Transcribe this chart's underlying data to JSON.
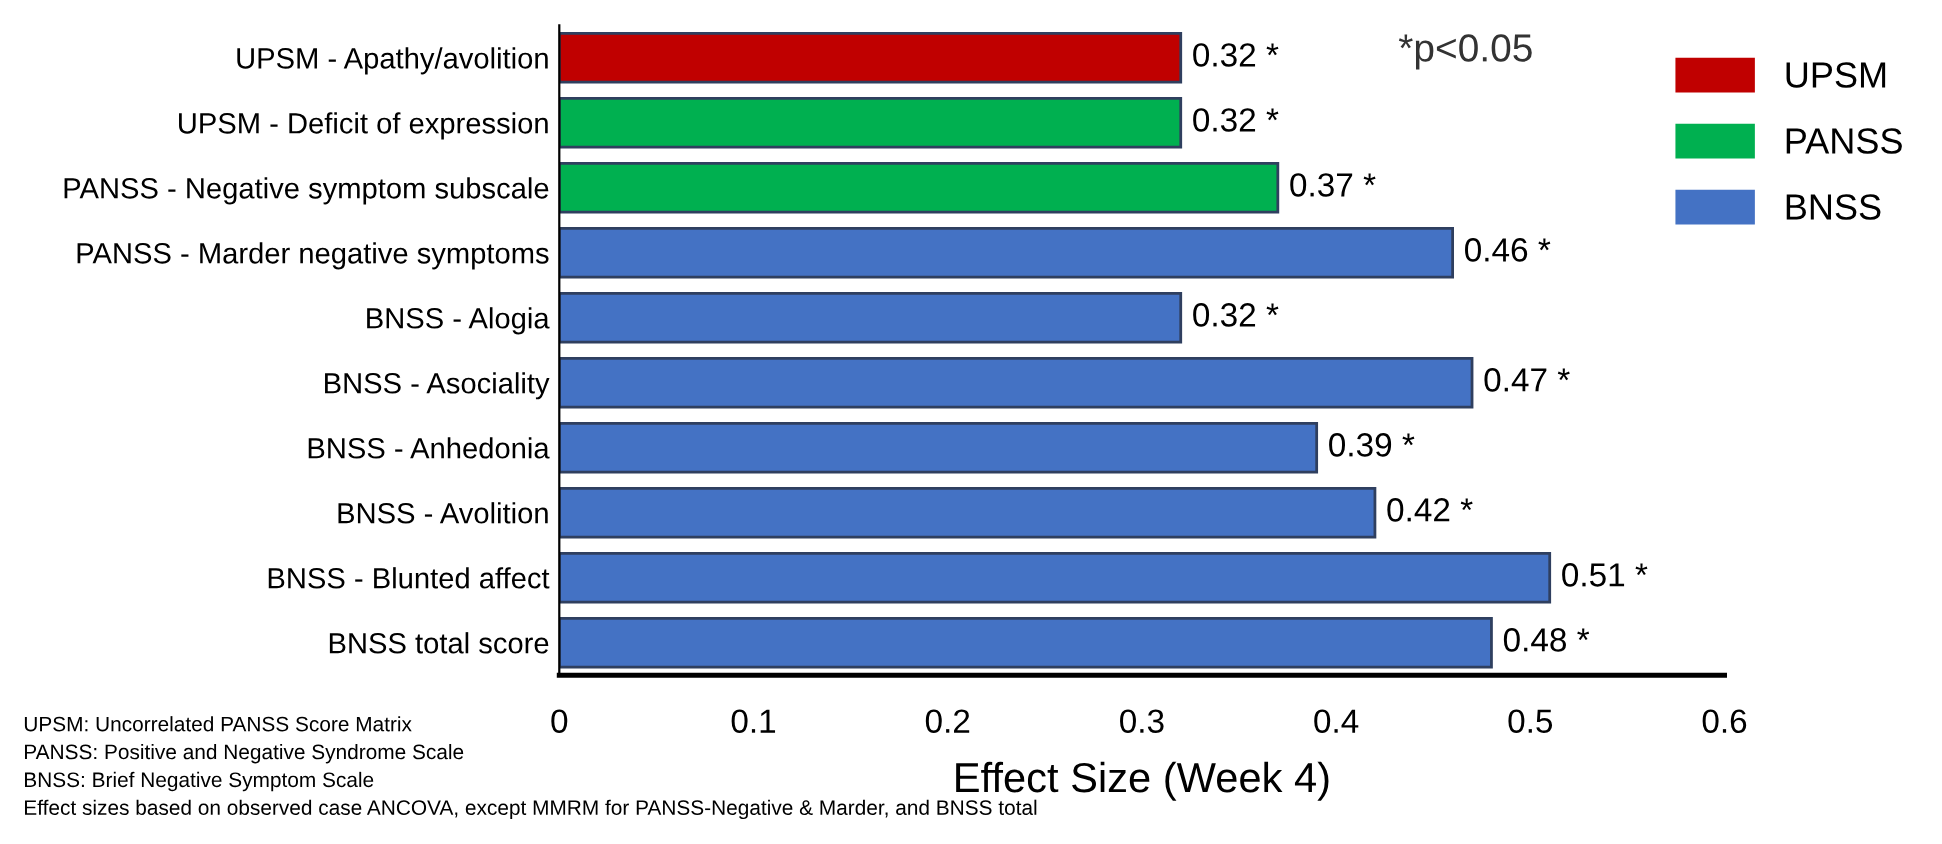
{
  "chart_data": {
    "type": "bar",
    "orientation": "horizontal",
    "categories": [
      "UPSM - Apathy/avolition",
      "UPSM - Deficit of expression",
      "PANSS - Negative symptom subscale",
      "PANSS - Marder negative symptoms",
      "BNSS - Alogia",
      "BNSS - Asociality",
      "BNSS - Anhedonia",
      "BNSS - Avolition",
      "BNSS - Blunted affect",
      "BNSS total score"
    ],
    "series": [
      {
        "name": "UPSM",
        "color": "#c00000",
        "values": [
          0.32,
          null,
          null,
          null,
          null,
          null,
          null,
          null,
          null,
          null
        ],
        "value_labels": [
          "0.32 *",
          null,
          null,
          null,
          null,
          null,
          null,
          null,
          null,
          null
        ]
      },
      {
        "name": "PANSS",
        "color": "#00b050",
        "values": [
          null,
          0.32,
          0.37,
          null,
          null,
          null,
          null,
          null,
          null,
          null
        ],
        "value_labels": [
          null,
          "0.32 *",
          "0.37 *",
          null,
          null,
          null,
          null,
          null,
          null,
          null
        ]
      },
      {
        "name": "BNSS",
        "color": "#4472c4",
        "values": [
          null,
          null,
          null,
          0.46,
          0.32,
          0.47,
          0.39,
          0.42,
          0.51,
          0.48
        ],
        "value_labels": [
          null,
          null,
          null,
          "0.46 *",
          "0.32 *",
          "0.47 *",
          "0.39 *",
          "0.42 *",
          "0.51 *",
          "0.48 *"
        ]
      }
    ],
    "xlim": [
      0,
      0.6
    ],
    "xticks": [
      0,
      0.1,
      0.2,
      0.3,
      0.4,
      0.5,
      0.6
    ],
    "xlabel": "Effect Size (Week 4)",
    "legend": "top right",
    "grid": false,
    "annotations": [
      "*p<0.05",
      "UPSM: Uncorrelated PANSS Score Matrix",
      "PANSS: Positive and Negative Syndrome Scale",
      "BNSS: Brief Negative Symptom Scale",
      "Effect sizes based on observed case ANCOVA, except MMRM for PANSS-Negative & Marder, and BNSS total"
    ]
  }
}
